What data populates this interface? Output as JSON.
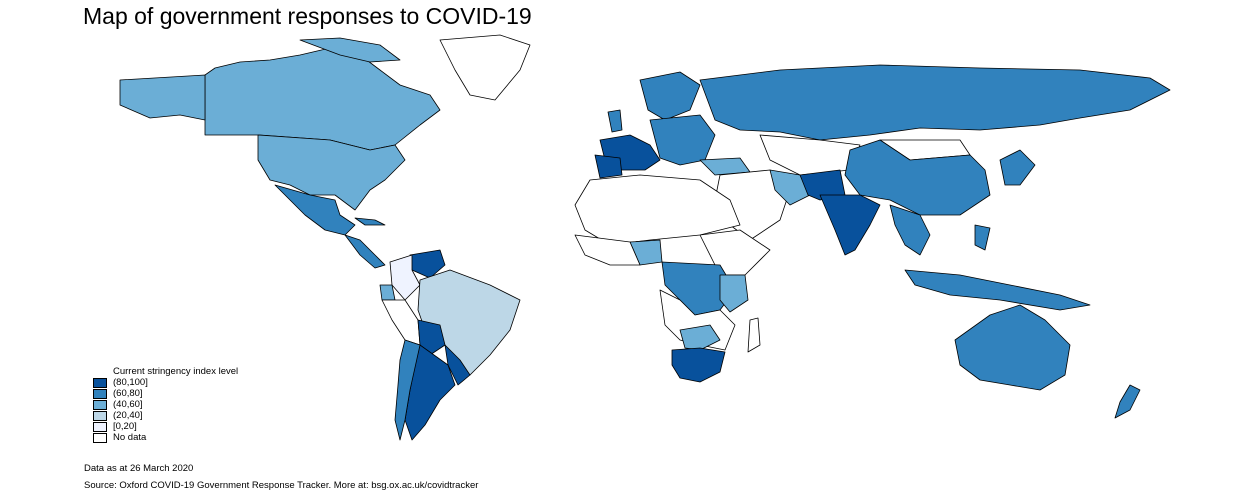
{
  "title": "Map of government responses to COVID-19",
  "legend": {
    "title": "Current stringency index level",
    "items": [
      {
        "label": "(80,100]",
        "color": "#08519c"
      },
      {
        "label": "(60,80]",
        "color": "#3182bd"
      },
      {
        "label": "(40,60]",
        "color": "#6baed6"
      },
      {
        "label": "(20,40]",
        "color": "#bdd7e7"
      },
      {
        "label": "[0,20]",
        "color": "#eff3ff"
      },
      {
        "label": "No data",
        "color": "#ffffff"
      }
    ]
  },
  "date_note": "Data as at 26 March 2020",
  "source_note": "Source: Oxford COVID-19 Government Response Tracker. More at: bsg.ox.ac.uk/covidtracker"
}
